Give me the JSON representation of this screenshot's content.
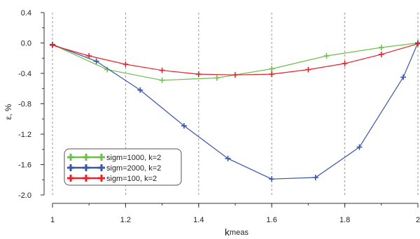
{
  "chart_data": {
    "type": "line",
    "xlabel": "k",
    "xlabel_sub": "meas",
    "ylabel": "ε, %",
    "xlim": [
      1,
      2
    ],
    "ylim": [
      -2.0,
      0.4
    ],
    "xticks": [
      "1",
      "1.2",
      "1.4",
      "1.6",
      "1.8",
      "2"
    ],
    "yticks": [
      "0.4",
      "0.0",
      "-0.4",
      "-0.8",
      "-1.2",
      "-1.6",
      "-2.0"
    ],
    "grid": "vertical dashed",
    "legend_position": "bottom-left",
    "series": [
      {
        "name": "sigm=1000, k=2",
        "color": "#6cc04a",
        "x": [
          1.0,
          1.15,
          1.3,
          1.45,
          1.6,
          1.75,
          1.9,
          2.0
        ],
        "y": [
          -0.02,
          -0.35,
          -0.49,
          -0.46,
          -0.34,
          -0.17,
          -0.06,
          0.0
        ]
      },
      {
        "name": "sigm=2000, k=2",
        "color": "#3a56a6",
        "x": [
          1.0,
          1.12,
          1.24,
          1.36,
          1.48,
          1.6,
          1.72,
          1.84,
          1.96,
          2.0
        ],
        "y": [
          -0.02,
          -0.24,
          -0.62,
          -1.09,
          -1.52,
          -1.79,
          -1.77,
          -1.37,
          -0.45,
          0.0
        ]
      },
      {
        "name": "sigm=100, k=2",
        "color": "#e8222c",
        "x": [
          1.0,
          1.1,
          1.2,
          1.3,
          1.4,
          1.5,
          1.6,
          1.7,
          1.8,
          1.9,
          2.0
        ],
        "y": [
          -0.03,
          -0.17,
          -0.28,
          -0.36,
          -0.41,
          -0.42,
          -0.41,
          -0.35,
          -0.27,
          -0.15,
          -0.01
        ]
      }
    ]
  }
}
